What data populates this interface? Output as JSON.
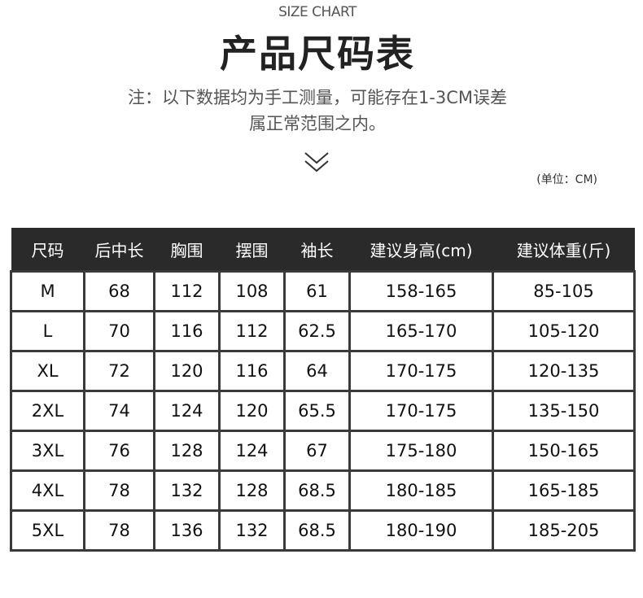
{
  "header": {
    "subtitle": "SIZE CHART",
    "title": "产品尺码表",
    "note_line1": "注：以下数据均为手工测量，可能存在1-3CM误差",
    "note_line2": "属正常范围之内。",
    "unit": "(单位：CM)",
    "chevron_icon": "double-chevron-down-icon"
  },
  "table": {
    "columns": [
      "尺码",
      "后中长",
      "胸围",
      "摆围",
      "袖长",
      "建议身高(cm)",
      "建议体重(斤)"
    ],
    "rows": [
      [
        "M",
        "68",
        "112",
        "108",
        "61",
        "158-165",
        "85-105"
      ],
      [
        "L",
        "70",
        "116",
        "112",
        "62.5",
        "165-170",
        "105-120"
      ],
      [
        "XL",
        "72",
        "120",
        "116",
        "64",
        "170-175",
        "120-135"
      ],
      [
        "2XL",
        "74",
        "124",
        "120",
        "65.5",
        "170-175",
        "135-150"
      ],
      [
        "3XL",
        "76",
        "128",
        "124",
        "67",
        "175-180",
        "150-165"
      ],
      [
        "4XL",
        "78",
        "132",
        "128",
        "68.5",
        "180-185",
        "165-185"
      ],
      [
        "5XL",
        "78",
        "136",
        "132",
        "68.5",
        "180-190",
        "185-205"
      ]
    ]
  }
}
